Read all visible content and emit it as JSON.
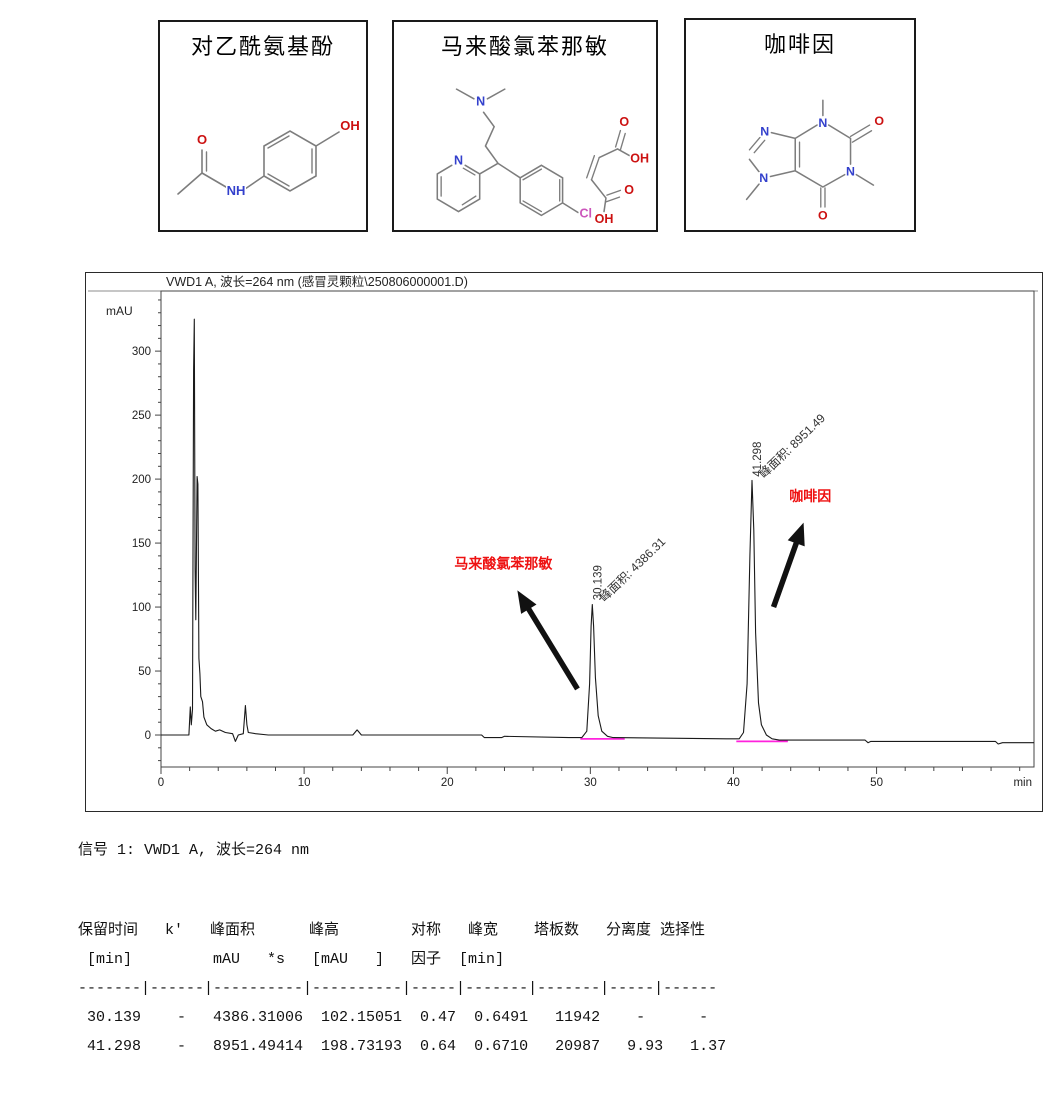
{
  "compounds": [
    {
      "name": "对乙酰氨基酚",
      "atoms": [
        "O",
        "NH",
        "OH"
      ]
    },
    {
      "name": "马来酸氯苯那敏",
      "atoms": [
        "N",
        "N",
        "Cl",
        "O",
        "OH",
        "O",
        "OH"
      ]
    },
    {
      "name": "咖啡因",
      "atoms": [
        "N",
        "N",
        "N",
        "N",
        "O",
        "O"
      ]
    }
  ],
  "chart_data": {
    "type": "line",
    "title": "VWD1 A, 波长=264 nm (感冒灵颗粒\\250806000001.D)",
    "xlabel": "min",
    "ylabel": "mAU",
    "xlim": [
      0,
      61
    ],
    "ylim": [
      -25,
      347
    ],
    "x_major_ticks": [
      0,
      10,
      20,
      30,
      40,
      50
    ],
    "x_minor_step": 2,
    "y_major_ticks": [
      0,
      50,
      100,
      150,
      200,
      250,
      300
    ],
    "y_minor_step": 10,
    "axis_color": "#444444",
    "trace_color": "#1a1a1a",
    "integration_color": "#ff22dd",
    "series": [
      {
        "name": "VWD1 A, 波长=264 nm",
        "points": [
          [
            0,
            0
          ],
          [
            1.95,
            0
          ],
          [
            2.05,
            22
          ],
          [
            2.12,
            8
          ],
          [
            2.2,
            20
          ],
          [
            2.28,
            285
          ],
          [
            2.33,
            325
          ],
          [
            2.38,
            130
          ],
          [
            2.43,
            90
          ],
          [
            2.52,
            202
          ],
          [
            2.58,
            196
          ],
          [
            2.65,
            60
          ],
          [
            2.72,
            48
          ],
          [
            2.78,
            30
          ],
          [
            2.9,
            26
          ],
          [
            3.0,
            14
          ],
          [
            3.2,
            8
          ],
          [
            3.5,
            5
          ],
          [
            3.8,
            3
          ],
          [
            4.1,
            4
          ],
          [
            4.5,
            2
          ],
          [
            5.0,
            1
          ],
          [
            5.2,
            -5
          ],
          [
            5.4,
            0
          ],
          [
            5.75,
            1
          ],
          [
            5.9,
            23
          ],
          [
            6.0,
            8
          ],
          [
            6.1,
            2
          ],
          [
            6.6,
            1
          ],
          [
            7.5,
            0
          ],
          [
            13.4,
            0
          ],
          [
            13.7,
            4
          ],
          [
            14.0,
            0
          ],
          [
            22.4,
            0
          ],
          [
            22.6,
            -2
          ],
          [
            23.8,
            -2
          ],
          [
            24.0,
            -1
          ],
          [
            28.5,
            -2
          ],
          [
            29.4,
            -2
          ],
          [
            29.75,
            3
          ],
          [
            29.95,
            40
          ],
          [
            30.05,
            85
          ],
          [
            30.139,
            102
          ],
          [
            30.23,
            85
          ],
          [
            30.35,
            45
          ],
          [
            30.55,
            15
          ],
          [
            30.8,
            3
          ],
          [
            31.2,
            -1
          ],
          [
            31.6,
            -2
          ],
          [
            39.5,
            -3
          ],
          [
            40.4,
            -3
          ],
          [
            40.7,
            2
          ],
          [
            40.95,
            40
          ],
          [
            41.15,
            140
          ],
          [
            41.298,
            199
          ],
          [
            41.42,
            160
          ],
          [
            41.55,
            80
          ],
          [
            41.75,
            25
          ],
          [
            41.95,
            8
          ],
          [
            42.3,
            0
          ],
          [
            42.7,
            -3
          ],
          [
            43.2,
            -4
          ],
          [
            49.2,
            -4
          ],
          [
            49.4,
            -6
          ],
          [
            49.6,
            -5
          ],
          [
            58.3,
            -5
          ],
          [
            58.5,
            -7
          ],
          [
            58.8,
            -6
          ],
          [
            61,
            -6
          ]
        ]
      }
    ],
    "integration_baselines": [
      {
        "x1": 29.3,
        "x2": 32.4,
        "y": -3
      },
      {
        "x1": 40.2,
        "x2": 43.8,
        "y": -5
      }
    ],
    "peaks": [
      {
        "rt_label": "30.139",
        "rt": 30.139,
        "height_mau": 102.15,
        "area_label": "峰面积: 4386.31"
      },
      {
        "rt_label": "41.298",
        "rt": 41.298,
        "height_mau": 198.73,
        "area_label": "峰面积: 8951.49"
      }
    ],
    "annotations": [
      {
        "text": "马来酸氯苯那敏",
        "color": "#ee1111",
        "x": 20.5,
        "y": 130,
        "arrow": {
          "x1": 29.1,
          "y1": 36,
          "x2": 24.9,
          "y2": 113
        }
      },
      {
        "text": "咖啡因",
        "color": "#ee1111",
        "x": 43.9,
        "y": 183,
        "arrow": {
          "x1": 42.8,
          "y1": 100,
          "x2": 44.9,
          "y2": 166
        }
      }
    ]
  },
  "signal_line": "信号 1: VWD1 A, 波长=264 nm",
  "report_table": {
    "lines": [
      "保留时间   k'   峰面积      峰高        对称   峰宽    塔板数   分离度 选择性",
      " [min]         mAU   *s   [mAU   ]   因子  [min]",
      "-------|------|----------|----------|-----|-------|-------|-----|------",
      " 30.139    -   4386.31006  102.15051  0.47  0.6491   11942    -      -",
      " 41.298    -   8951.49414  198.73193  0.64  0.6710   20987   9.93   1.37"
    ]
  }
}
